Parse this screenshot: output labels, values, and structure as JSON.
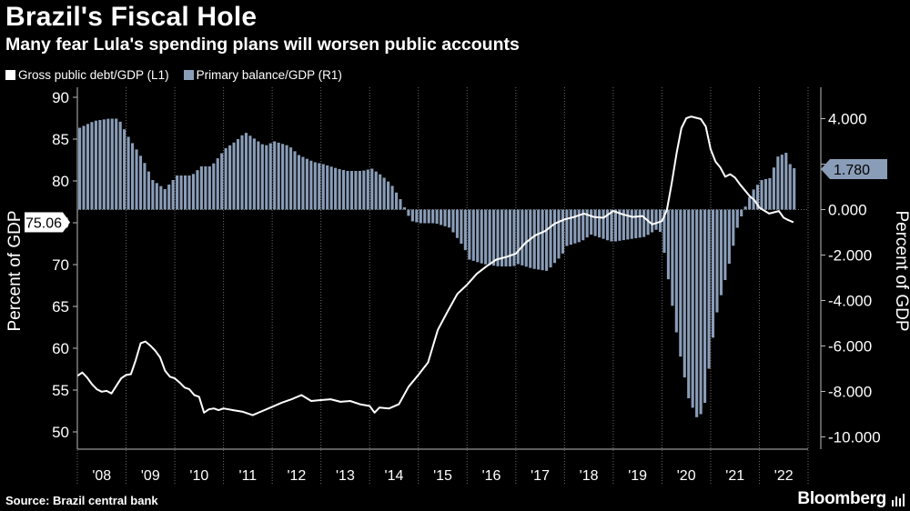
{
  "title": "Brazil's Fiscal Hole",
  "subtitle": "Many fear Lula's spending plans will worsen public accounts",
  "legend": [
    {
      "label": "Gross public debt/GDP (L1)",
      "color": "#ffffff"
    },
    {
      "label": "Primary balance/GDP (R1)",
      "color": "#8a9db8"
    }
  ],
  "source": "Source: Brazil central bank",
  "brand": "Bloomberg",
  "chart_data": {
    "type": "bar+line",
    "x_ticks": [
      "'08",
      "'09",
      "'10",
      "'11",
      "'12",
      "'13",
      "'14",
      "'15",
      "'16",
      "'17",
      "'18",
      "'19",
      "'20",
      "'21",
      "'22"
    ],
    "left_axis": {
      "label": "Percent of GDP",
      "range": [
        49,
        91
      ],
      "ticks": [
        50,
        55,
        60,
        65,
        70,
        75,
        80,
        85,
        90
      ]
    },
    "right_axis": {
      "label": "Percent of GDP",
      "range": [
        -10.3,
        5.3
      ],
      "ticks": [
        "4.000",
        "2.000",
        "0.000",
        "-2.000",
        "-4.000",
        "-6.000",
        "-8.000",
        "-10.000"
      ]
    },
    "last_values": {
      "debt": "75.06",
      "primary": "1.780"
    },
    "series": [
      {
        "name": "Gross public debt/GDP",
        "axis": "left",
        "kind": "line",
        "points": [
          [
            2008.0,
            56.7
          ],
          [
            2008.1,
            57.1
          ],
          [
            2008.2,
            56.5
          ],
          [
            2008.3,
            55.7
          ],
          [
            2008.4,
            55.1
          ],
          [
            2008.5,
            54.8
          ],
          [
            2008.6,
            54.9
          ],
          [
            2008.7,
            54.6
          ],
          [
            2008.8,
            55.5
          ],
          [
            2008.9,
            56.4
          ],
          [
            2009.0,
            56.8
          ],
          [
            2009.1,
            56.9
          ],
          [
            2009.2,
            58.6
          ],
          [
            2009.3,
            60.6
          ],
          [
            2009.4,
            60.8
          ],
          [
            2009.5,
            60.3
          ],
          [
            2009.6,
            59.7
          ],
          [
            2009.7,
            58.9
          ],
          [
            2009.8,
            57.3
          ],
          [
            2009.9,
            56.6
          ],
          [
            2010.0,
            56.4
          ],
          [
            2010.1,
            55.9
          ],
          [
            2010.2,
            55.3
          ],
          [
            2010.3,
            55.1
          ],
          [
            2010.4,
            54.4
          ],
          [
            2010.5,
            54.2
          ],
          [
            2010.6,
            52.3
          ],
          [
            2010.7,
            52.7
          ],
          [
            2010.8,
            52.8
          ],
          [
            2010.9,
            52.6
          ],
          [
            2011.0,
            52.8
          ],
          [
            2011.2,
            52.6
          ],
          [
            2011.4,
            52.4
          ],
          [
            2011.6,
            52.0
          ],
          [
            2011.8,
            52.5
          ],
          [
            2012.0,
            53.0
          ],
          [
            2012.2,
            53.5
          ],
          [
            2012.4,
            53.9
          ],
          [
            2012.6,
            54.4
          ],
          [
            2012.8,
            53.7
          ],
          [
            2013.0,
            53.8
          ],
          [
            2013.2,
            53.9
          ],
          [
            2013.4,
            53.6
          ],
          [
            2013.6,
            53.7
          ],
          [
            2013.8,
            53.3
          ],
          [
            2014.0,
            53.1
          ],
          [
            2014.1,
            52.3
          ],
          [
            2014.2,
            52.9
          ],
          [
            2014.4,
            52.8
          ],
          [
            2014.6,
            53.3
          ],
          [
            2014.8,
            55.4
          ],
          [
            2015.0,
            56.8
          ],
          [
            2015.2,
            58.3
          ],
          [
            2015.4,
            62.2
          ],
          [
            2015.6,
            64.4
          ],
          [
            2015.8,
            66.5
          ],
          [
            2016.0,
            67.6
          ],
          [
            2016.2,
            68.9
          ],
          [
            2016.4,
            69.8
          ],
          [
            2016.6,
            70.6
          ],
          [
            2016.8,
            70.9
          ],
          [
            2017.0,
            71.3
          ],
          [
            2017.2,
            72.6
          ],
          [
            2017.4,
            73.5
          ],
          [
            2017.6,
            74.0
          ],
          [
            2017.8,
            74.9
          ],
          [
            2018.0,
            75.4
          ],
          [
            2018.2,
            75.7
          ],
          [
            2018.4,
            76.1
          ],
          [
            2018.6,
            75.7
          ],
          [
            2018.8,
            75.6
          ],
          [
            2019.0,
            76.4
          ],
          [
            2019.2,
            76.0
          ],
          [
            2019.4,
            75.7
          ],
          [
            2019.6,
            75.8
          ],
          [
            2019.8,
            74.8
          ],
          [
            2020.0,
            75.2
          ],
          [
            2020.1,
            76.5
          ],
          [
            2020.2,
            79.7
          ],
          [
            2020.3,
            83.3
          ],
          [
            2020.4,
            86.3
          ],
          [
            2020.5,
            87.5
          ],
          [
            2020.6,
            87.7
          ],
          [
            2020.8,
            87.4
          ],
          [
            2020.9,
            86.5
          ],
          [
            2021.0,
            83.8
          ],
          [
            2021.1,
            82.3
          ],
          [
            2021.2,
            81.6
          ],
          [
            2021.3,
            80.5
          ],
          [
            2021.4,
            80.8
          ],
          [
            2021.5,
            80.4
          ],
          [
            2021.6,
            79.6
          ],
          [
            2021.8,
            78.2
          ],
          [
            2021.9,
            77.7
          ],
          [
            2022.0,
            76.8
          ],
          [
            2022.2,
            76.1
          ],
          [
            2022.4,
            76.4
          ],
          [
            2022.5,
            75.6
          ],
          [
            2022.6,
            75.3
          ],
          [
            2022.7,
            75.06
          ]
        ]
      },
      {
        "name": "Primary balance/GDP",
        "axis": "right",
        "kind": "bar",
        "points": [
          [
            2008.0,
            3.6
          ],
          [
            2008.3,
            3.9
          ],
          [
            2008.6,
            4.0
          ],
          [
            2008.8,
            4.0
          ],
          [
            2009.0,
            3.2
          ],
          [
            2009.3,
            2.2
          ],
          [
            2009.5,
            1.3
          ],
          [
            2009.75,
            0.9
          ],
          [
            2010.0,
            1.5
          ],
          [
            2010.3,
            1.5
          ],
          [
            2010.5,
            1.9
          ],
          [
            2010.7,
            1.9
          ],
          [
            2011.0,
            2.7
          ],
          [
            2011.2,
            3.0
          ],
          [
            2011.4,
            3.4
          ],
          [
            2011.6,
            3.1
          ],
          [
            2011.8,
            2.8
          ],
          [
            2012.0,
            3.0
          ],
          [
            2012.3,
            2.8
          ],
          [
            2012.5,
            2.4
          ],
          [
            2012.8,
            2.1
          ],
          [
            2013.0,
            2.0
          ],
          [
            2013.3,
            1.8
          ],
          [
            2013.5,
            1.7
          ],
          [
            2013.8,
            1.7
          ],
          [
            2014.0,
            1.8
          ],
          [
            2014.2,
            1.5
          ],
          [
            2014.4,
            1.1
          ],
          [
            2014.6,
            0.4
          ],
          [
            2014.8,
            -0.5
          ],
          [
            2015.0,
            -0.6
          ],
          [
            2015.3,
            -0.6
          ],
          [
            2015.6,
            -0.8
          ],
          [
            2015.9,
            -1.7
          ],
          [
            2016.0,
            -2.2
          ],
          [
            2016.3,
            -2.4
          ],
          [
            2016.6,
            -2.5
          ],
          [
            2016.9,
            -2.5
          ],
          [
            2017.0,
            -2.4
          ],
          [
            2017.3,
            -2.6
          ],
          [
            2017.6,
            -2.7
          ],
          [
            2017.9,
            -2.0
          ],
          [
            2018.0,
            -1.6
          ],
          [
            2018.3,
            -1.4
          ],
          [
            2018.5,
            -1.1
          ],
          [
            2018.9,
            -1.4
          ],
          [
            2019.0,
            -1.4
          ],
          [
            2019.3,
            -1.3
          ],
          [
            2019.6,
            -1.2
          ],
          [
            2019.9,
            -0.8
          ],
          [
            2020.0,
            -1.9
          ],
          [
            2020.15,
            -4.0
          ],
          [
            2020.3,
            -6.1
          ],
          [
            2020.5,
            -8.3
          ],
          [
            2020.7,
            -9.3
          ],
          [
            2020.85,
            -8.4
          ],
          [
            2020.95,
            -6.3
          ],
          [
            2021.1,
            -4.3
          ],
          [
            2021.3,
            -2.7
          ],
          [
            2021.5,
            -0.8
          ],
          [
            2021.6,
            -0.2
          ],
          [
            2021.8,
            0.8
          ],
          [
            2022.0,
            1.3
          ],
          [
            2022.2,
            1.4
          ],
          [
            2022.3,
            2.3
          ],
          [
            2022.5,
            2.5
          ],
          [
            2022.6,
            1.9
          ],
          [
            2022.7,
            1.78
          ]
        ]
      }
    ]
  }
}
